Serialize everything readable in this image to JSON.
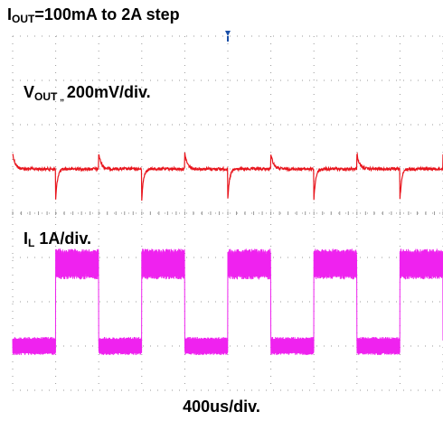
{
  "title": {
    "prefix": "I",
    "sub": "OUT",
    "rest": "=100mA to 2A step"
  },
  "channels": {
    "vout": {
      "prefix": "V",
      "sub": "OUT",
      "sep": " „ ",
      "scale": "200mV/div."
    },
    "il": {
      "prefix": "I",
      "sub": "L",
      "scale": " 1A/div."
    }
  },
  "timebase": "400us/div.",
  "colors": {
    "vout_trace": "#e8141c",
    "il_trace": "#ee22ee",
    "grid_dots": "#9a9a9a",
    "trigger_marker": "#1a4fa8"
  },
  "chart_data": {
    "type": "line",
    "divisions": {
      "x": 10,
      "y": 8
    },
    "x_unit": "div",
    "series": [
      {
        "name": "VOUT",
        "scale": "200mV/div.",
        "baseline_div": 5.0,
        "load_step_rise_div": [
          0.0,
          2.0,
          4.0,
          6.0,
          8.0,
          10.0
        ],
        "load_step_fall_div": [
          1.0,
          3.0,
          5.0,
          7.0,
          9.0
        ],
        "spike_up_div": 0.35,
        "spike_down_div": 0.7
      },
      {
        "name": "IL",
        "scale": " 1A/div.",
        "low_level_div": 1.0,
        "high_level_div": 2.85,
        "high_intervals_div": [
          [
            1.0,
            2.0
          ],
          [
            3.0,
            4.0
          ],
          [
            5.0,
            6.0
          ],
          [
            7.0,
            8.0
          ],
          [
            9.0,
            10.0
          ]
        ]
      }
    ]
  }
}
